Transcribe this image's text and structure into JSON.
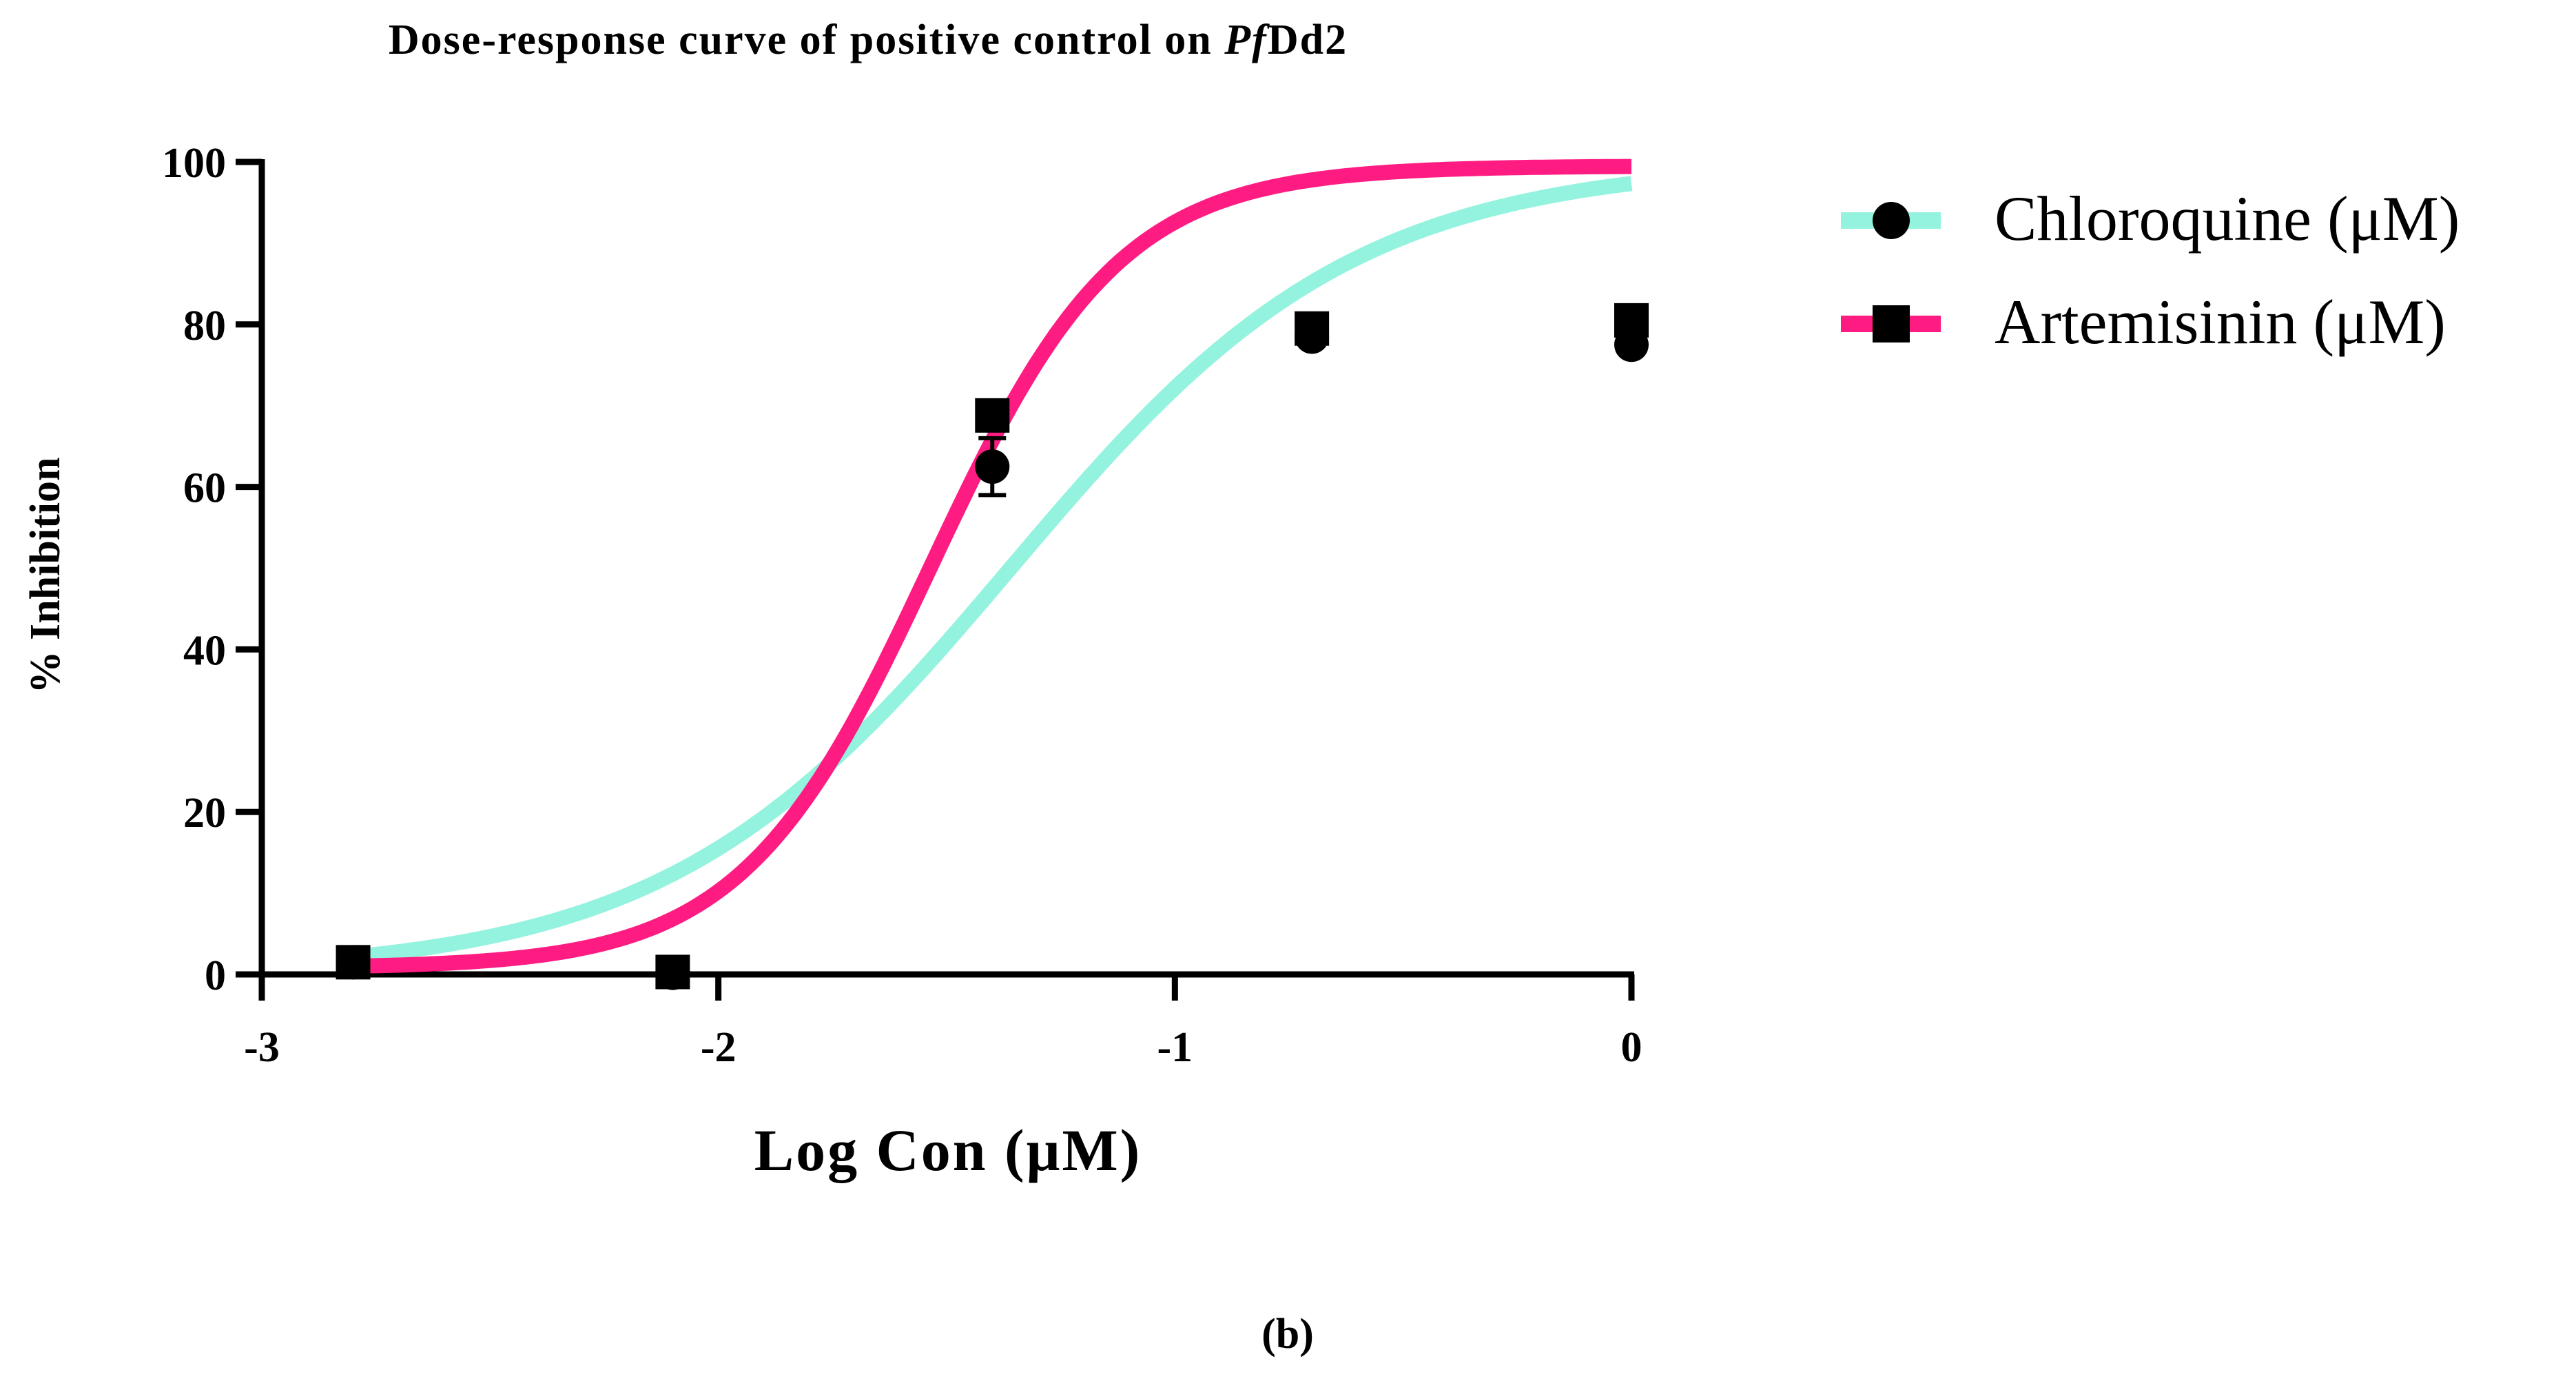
{
  "chart_data": {
    "type": "line",
    "title_prefix": "Dose-response curve of positive control on ",
    "title_italic": "Pf",
    "title_suffix": "Dd2",
    "xlabel": "Log Con (μM)",
    "ylabel": "% Inhibition",
    "xlim": [
      -3,
      0
    ],
    "ylim": [
      0,
      100
    ],
    "x_ticks": [
      -3,
      -2,
      -1,
      0
    ],
    "x_tick_labels": [
      "-3",
      "-2",
      "-1",
      "0"
    ],
    "y_ticks": [
      0,
      20,
      40,
      60,
      80,
      100
    ],
    "y_tick_labels": [
      "0",
      "20",
      "40",
      "60",
      "80",
      "100"
    ],
    "panel_label": "(b)",
    "legend_position": "right",
    "series": [
      {
        "name": "Chloroquine (μM)",
        "color": "#94F3DE",
        "marker": "circle",
        "points": [
          {
            "x": -2.8,
            "y": 1.5
          },
          {
            "x": -2.1,
            "y": 0.2
          },
          {
            "x": -1.4,
            "y": 62.5,
            "err": 3.5
          },
          {
            "x": -0.7,
            "y": 78.5
          },
          {
            "x": 0.0,
            "y": 77.5
          }
        ],
        "fit": {
          "bottom": 0,
          "top": 100,
          "logEC50": -1.36,
          "hill": 1.15,
          "x_range": [
            -2.8,
            0
          ]
        }
      },
      {
        "name": "Artemisinin (μM)",
        "color": "#FF1C82",
        "marker": "square",
        "points": [
          {
            "x": -2.8,
            "y": 1.5
          },
          {
            "x": -2.1,
            "y": 0.3
          },
          {
            "x": -1.4,
            "y": 68.8,
            "err": 1.0
          },
          {
            "x": -0.7,
            "y": 79.5
          },
          {
            "x": 0.0,
            "y": 80.5
          }
        ],
        "fit": {
          "bottom": 0.8,
          "top": 99.5,
          "logEC50": -1.535,
          "hill": 2.1,
          "x_range": [
            -2.8,
            0
          ]
        }
      }
    ]
  }
}
